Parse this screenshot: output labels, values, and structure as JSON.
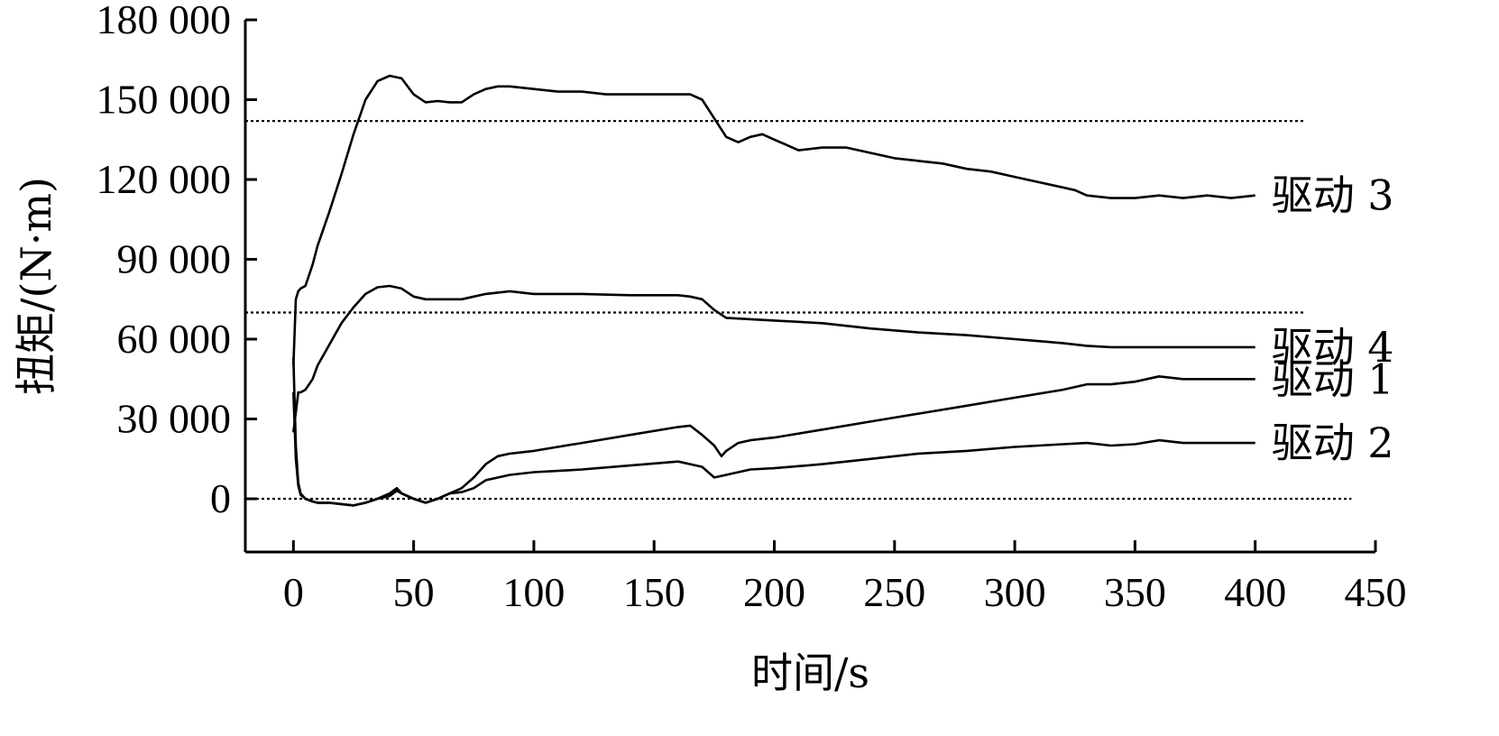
{
  "chart_data": {
    "type": "line",
    "xlabel": "时间/s",
    "ylabel": "扭矩/(N·m)",
    "xlim": [
      -20,
      450
    ],
    "ylim": [
      -20000,
      180000
    ],
    "xticks": [
      0,
      50,
      100,
      150,
      200,
      250,
      300,
      350,
      400,
      450
    ],
    "yticks": [
      0,
      30000,
      60000,
      90000,
      120000,
      150000,
      180000
    ],
    "xtick_labels": [
      "0",
      "50",
      "100",
      "150",
      "200",
      "250",
      "300",
      "350",
      "400",
      "450"
    ],
    "ytick_labels": [
      "0",
      "30 000",
      "60 000",
      "90 000",
      "120 000",
      "150 000",
      "180 000"
    ],
    "reference_lines": [
      {
        "y": 142000,
        "x_range": [
          -20,
          420
        ]
      },
      {
        "y": 70000,
        "x_range": [
          -20,
          420
        ]
      },
      {
        "y": 0,
        "x_range": [
          -20,
          440
        ]
      }
    ],
    "series": [
      {
        "name": "驱动 3",
        "x": [
          0,
          1,
          2,
          3,
          5,
          8,
          10,
          15,
          20,
          25,
          30,
          35,
          40,
          45,
          50,
          55,
          60,
          65,
          70,
          75,
          80,
          85,
          90,
          100,
          110,
          120,
          130,
          140,
          150,
          160,
          165,
          170,
          175,
          180,
          185,
          190,
          195,
          200,
          205,
          210,
          220,
          230,
          240,
          250,
          260,
          270,
          280,
          290,
          300,
          310,
          320,
          325,
          330,
          340,
          350,
          360,
          370,
          380,
          390,
          400
        ],
        "y": [
          50000,
          75000,
          78000,
          79000,
          80000,
          88000,
          95000,
          108000,
          122000,
          137000,
          150000,
          157000,
          159000,
          158000,
          152000,
          149000,
          149500,
          149000,
          149000,
          152000,
          154000,
          155000,
          155000,
          154000,
          153000,
          153000,
          152000,
          152000,
          152000,
          152000,
          152000,
          150000,
          143000,
          136000,
          134000,
          136000,
          137000,
          135000,
          133000,
          131000,
          132000,
          132000,
          130000,
          128000,
          127000,
          126000,
          124000,
          123000,
          121000,
          119000,
          117000,
          116000,
          114000,
          113000,
          113000,
          114000,
          113000,
          114000,
          113000,
          114000
        ]
      },
      {
        "name": "驱动 4",
        "x": [
          0,
          2,
          3,
          5,
          8,
          10,
          15,
          20,
          25,
          30,
          35,
          40,
          45,
          50,
          55,
          60,
          65,
          70,
          75,
          80,
          90,
          100,
          120,
          140,
          160,
          165,
          170,
          175,
          180,
          190,
          200,
          220,
          240,
          260,
          280,
          300,
          320,
          330,
          340,
          360,
          380,
          400
        ],
        "y": [
          25000,
          40000,
          40000,
          41000,
          45000,
          50000,
          58000,
          66000,
          72000,
          77000,
          79500,
          80000,
          79000,
          76000,
          75000,
          75000,
          75000,
          75000,
          76000,
          77000,
          78000,
          77000,
          77000,
          76500,
          76500,
          76000,
          75000,
          71000,
          68000,
          67500,
          67000,
          66000,
          64000,
          62500,
          61500,
          60000,
          58500,
          57500,
          57000,
          57000,
          57000,
          57000
        ]
      },
      {
        "name": "驱动 1",
        "x": [
          0,
          1,
          2,
          3,
          5,
          8,
          10,
          15,
          20,
          25,
          30,
          35,
          40,
          43,
          45,
          50,
          55,
          60,
          65,
          70,
          75,
          80,
          85,
          90,
          100,
          120,
          140,
          160,
          165,
          170,
          175,
          178,
          180,
          185,
          190,
          200,
          220,
          240,
          260,
          280,
          300,
          320,
          330,
          340,
          350,
          360,
          370,
          380,
          400
        ],
        "y": [
          53000,
          20000,
          6000,
          2000,
          0,
          -1000,
          -1500,
          -1500,
          -2000,
          -2500,
          -1500,
          0,
          1000,
          3000,
          2000,
          0,
          -1500,
          0,
          2000,
          4000,
          8000,
          13000,
          16000,
          17000,
          18000,
          21000,
          24000,
          27000,
          27500,
          24000,
          20000,
          16000,
          18000,
          21000,
          22000,
          23000,
          26000,
          29000,
          32000,
          35000,
          38000,
          41000,
          43000,
          43000,
          44000,
          46000,
          45000,
          45000,
          45000
        ]
      },
      {
        "name": "驱动 2",
        "x": [
          0,
          1,
          2,
          3,
          5,
          8,
          10,
          15,
          20,
          25,
          30,
          35,
          40,
          43,
          45,
          50,
          55,
          60,
          65,
          70,
          75,
          80,
          90,
          100,
          120,
          140,
          160,
          165,
          170,
          175,
          180,
          190,
          200,
          220,
          240,
          260,
          280,
          300,
          320,
          330,
          340,
          350,
          360,
          370,
          380,
          400
        ],
        "y": [
          40000,
          15000,
          5000,
          1500,
          0,
          -1000,
          -1500,
          -1500,
          -2000,
          -2500,
          -1500,
          0,
          2000,
          4000,
          2000,
          0,
          -1500,
          0,
          2000,
          2500,
          4000,
          7000,
          9000,
          10000,
          11000,
          12500,
          14000,
          13000,
          12000,
          8000,
          9000,
          11000,
          11500,
          13000,
          15000,
          17000,
          18000,
          19500,
          20500,
          21000,
          20000,
          20500,
          22000,
          21000,
          21000,
          21000
        ]
      }
    ]
  }
}
